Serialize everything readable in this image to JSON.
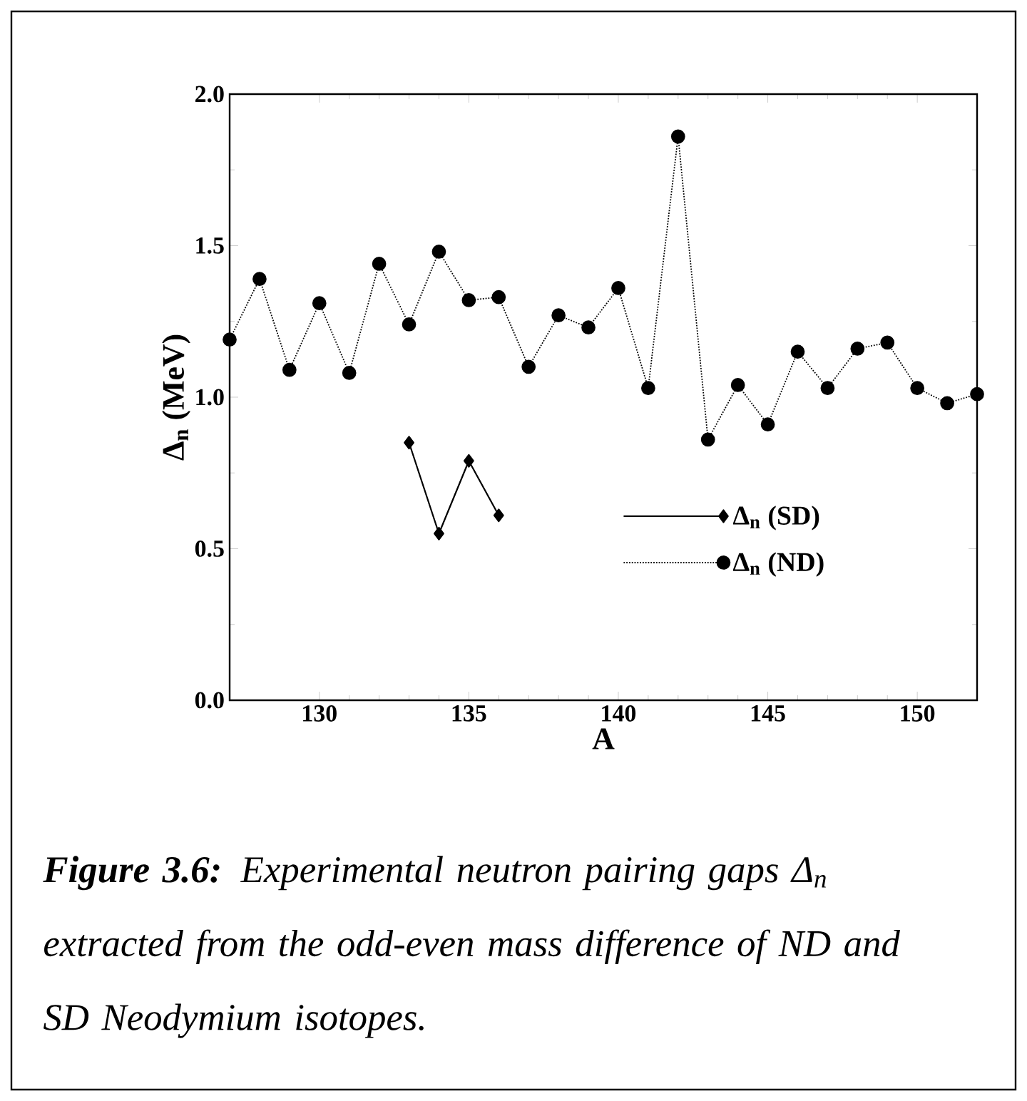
{
  "chart_data": {
    "type": "line",
    "xlabel": "A",
    "ylabel": "Δ$_{n}$ (MeV)",
    "xlim": [
      127,
      152
    ],
    "xticks": [
      130,
      135,
      140,
      145,
      150
    ],
    "ylim": [
      0,
      2
    ],
    "yticks": [
      {
        "value": 0,
        "label": "0.0"
      },
      {
        "value": 0.5,
        "label": "0.5"
      },
      {
        "value": 1,
        "label": "1.0"
      },
      {
        "value": 1.5,
        "label": "1.5"
      },
      {
        "value": 2,
        "label": "2.0"
      }
    ],
    "legend": "bottom right",
    "grid": false,
    "series": [
      {
        "name": "Δ$_{n}$ (SD)",
        "color": "#000000",
        "marker": "diamond",
        "line_style": "solid",
        "x": [
          133,
          134,
          135,
          136
        ],
        "values": [
          0.85,
          0.55,
          0.79,
          0.61
        ]
      },
      {
        "name": "Δ$_{n}$ (ND)",
        "color": "#000000",
        "marker": "circle",
        "line_style": "dotted",
        "x": [
          127,
          128,
          129,
          130,
          131,
          132,
          133,
          134,
          135,
          136,
          137,
          138,
          139,
          140,
          141,
          142,
          143,
          144,
          145,
          146,
          147,
          148,
          149,
          150,
          151,
          152
        ],
        "values": [
          1.19,
          1.39,
          1.09,
          1.31,
          1.08,
          1.44,
          1.24,
          1.48,
          1.32,
          1.33,
          1.1,
          1.27,
          1.23,
          1.36,
          1.03,
          1.86,
          0.86,
          1.04,
          0.91,
          1.15,
          1.03,
          1.16,
          1.18,
          1.03,
          0.98,
          1.01
        ]
      }
    ],
    "annotations": [
      "**Figure 3.6:** Experimental neutron pairing gaps Δ$_{n}$ extracted from the odd-even mass difference of ND and SD Neodymium isotopes."
    ]
  }
}
